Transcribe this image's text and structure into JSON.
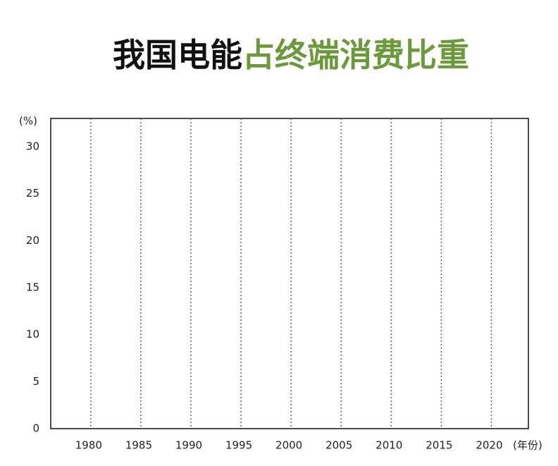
{
  "chart_data": {
    "type": "line",
    "title": [
      {
        "text": "我国电能",
        "color": "#111111"
      },
      {
        "text": "占终端消费比重",
        "color": "#6a9a3a"
      }
    ],
    "y_label": "(%)",
    "x_label": "(年份)",
    "xlim": [
      1976,
      2023.7
    ],
    "xticks": [
      1980,
      1985,
      1990,
      1995,
      2000,
      2005,
      2010,
      2015,
      2020
    ],
    "ylim": [
      0,
      33
    ],
    "yticks": [
      0,
      5,
      10,
      15,
      20,
      25,
      30
    ],
    "grid": "x"
  }
}
